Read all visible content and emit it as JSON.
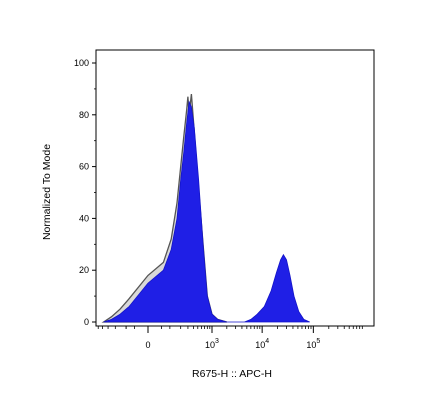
{
  "chart_data": {
    "type": "area",
    "xlabel": "R675-H :: APC-H",
    "ylabel": "Normalized To Mode",
    "ylim": [
      0,
      100
    ],
    "y_ticks": [
      0,
      20,
      40,
      60,
      80,
      100
    ],
    "x_scale": "biexponential",
    "x_ticks": [
      {
        "value": 0,
        "base": "0",
        "exp": ""
      },
      {
        "value": 1000,
        "base": "10",
        "exp": "3"
      },
      {
        "value": 10000,
        "base": "10",
        "exp": "4"
      },
      {
        "value": 100000,
        "base": "10",
        "exp": "5"
      }
    ],
    "series": [
      {
        "color": "#1f1fe6",
        "points": [
          [
            -380,
            0
          ],
          [
            -250,
            1
          ],
          [
            -150,
            3
          ],
          [
            -80,
            6
          ],
          [
            0,
            15
          ],
          [
            60,
            20
          ],
          [
            110,
            28
          ],
          [
            160,
            40
          ],
          [
            200,
            55
          ],
          [
            240,
            66
          ],
          [
            280,
            77
          ],
          [
            320,
            85
          ],
          [
            360,
            83
          ],
          [
            420,
            75
          ],
          [
            520,
            55
          ],
          [
            650,
            30
          ],
          [
            800,
            10
          ],
          [
            1000,
            3
          ],
          [
            1300,
            1
          ],
          [
            2000,
            0
          ],
          [
            4500,
            0
          ],
          [
            6000,
            1
          ],
          [
            8000,
            3
          ],
          [
            11000,
            6
          ],
          [
            15000,
            12
          ],
          [
            19000,
            19
          ],
          [
            23000,
            24
          ],
          [
            26000,
            26
          ],
          [
            30000,
            24
          ],
          [
            35000,
            18
          ],
          [
            42000,
            10
          ],
          [
            52000,
            4
          ],
          [
            65000,
            1
          ],
          [
            85000,
            0
          ]
        ]
      },
      {
        "color": "#d9d9d9",
        "points": [
          [
            -380,
            0
          ],
          [
            -250,
            2
          ],
          [
            -150,
            5
          ],
          [
            -80,
            9
          ],
          [
            0,
            18
          ],
          [
            60,
            23
          ],
          [
            110,
            32
          ],
          [
            160,
            46
          ],
          [
            200,
            60
          ],
          [
            240,
            72
          ],
          [
            280,
            82
          ],
          [
            300,
            87
          ],
          [
            320,
            80
          ],
          [
            360,
            88
          ],
          [
            400,
            78
          ],
          [
            500,
            55
          ],
          [
            650,
            30
          ],
          [
            800,
            10
          ],
          [
            1000,
            3
          ],
          [
            1300,
            1
          ],
          [
            2000,
            0
          ]
        ]
      }
    ]
  }
}
